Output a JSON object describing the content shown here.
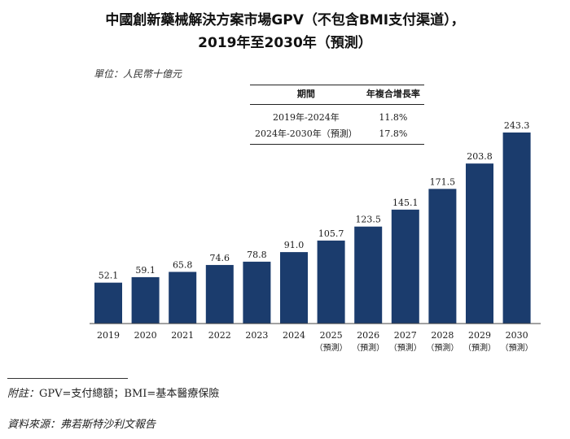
{
  "header": {
    "title_line1": "中國創新藥械解決方案市場GPV（不包含BMI支付渠道），",
    "title_line2": "2019年至2030年（預測）",
    "unit": "單位：人民幣十億元"
  },
  "cagr_table": {
    "headers": [
      "期間",
      "年複合增長率"
    ],
    "rows": [
      {
        "period": "2019年-2024年",
        "rate": "11.8%"
      },
      {
        "period": "2024年-2030年（預測）",
        "rate": "17.8%"
      }
    ]
  },
  "chart_data": {
    "type": "bar",
    "categories": [
      "2019",
      "2020",
      "2021",
      "2022",
      "2023",
      "2024",
      "2025",
      "2026",
      "2027",
      "2028",
      "2029",
      "2030"
    ],
    "category_notes": [
      "",
      "",
      "",
      "",
      "",
      "",
      "（預測）",
      "（預測）",
      "（預測）",
      "（預測）",
      "（預測）",
      "（預測）"
    ],
    "values": [
      52.1,
      59.1,
      65.8,
      74.6,
      78.8,
      91.0,
      105.7,
      123.5,
      145.1,
      171.5,
      203.8,
      243.3
    ],
    "value_labels": [
      "52.1",
      "59.1",
      "65.8",
      "74.6",
      "78.8",
      "91.0",
      "105.7",
      "123.5",
      "145.1",
      "171.5",
      "203.8",
      "243.3"
    ],
    "ylim": [
      0,
      243.3
    ],
    "bar_color": "#1b3c6d",
    "title": "中國創新藥械解決方案市場GPV（不包含BMI支付渠道），2019年至2030年（預測）",
    "xlabel": "",
    "ylabel": "單位：人民幣十億元"
  },
  "footer": {
    "note_label": "附註：",
    "note_text": "GPV=支付總額；BMI=基本醫療保險",
    "source_label": "資料來源：",
    "source_text": "弗若斯特沙利文報告"
  }
}
